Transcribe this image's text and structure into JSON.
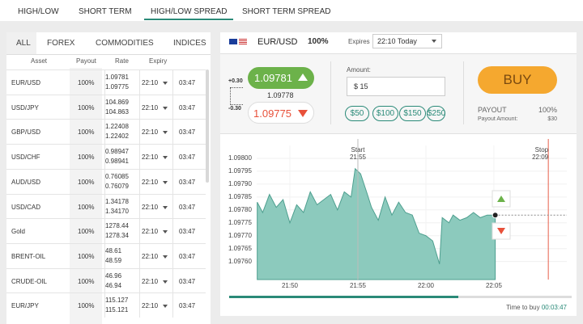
{
  "tabs": [
    "HIGH/LOW",
    "SHORT TERM",
    "HIGH/LOW SPREAD",
    "SHORT TERM SPREAD"
  ],
  "active_tab": 2,
  "filters": [
    "ALL",
    "FOREX",
    "COMMODITIES",
    "INDICES"
  ],
  "table": {
    "headers": [
      "Asset",
      "Payout",
      "Rate",
      "Expiry"
    ],
    "rows": [
      {
        "asset": "EUR/USD",
        "payout": "100%",
        "rate_high": "1.09781",
        "rate_low": "1.09775",
        "expiry": "22:10",
        "remaining": "03:47"
      },
      {
        "asset": "USD/JPY",
        "payout": "100%",
        "rate_high": "104.869",
        "rate_low": "104.863",
        "expiry": "22:10",
        "remaining": "03:47"
      },
      {
        "asset": "GBP/USD",
        "payout": "100%",
        "rate_high": "1.22408",
        "rate_low": "1.22402",
        "expiry": "22:10",
        "remaining": "03:47"
      },
      {
        "asset": "USD/CHF",
        "payout": "100%",
        "rate_high": "0.98947",
        "rate_low": "0.98941",
        "expiry": "22:10",
        "remaining": "03:47"
      },
      {
        "asset": "AUD/USD",
        "payout": "100%",
        "rate_high": "0.76085",
        "rate_low": "0.76079",
        "expiry": "22:10",
        "remaining": "03:47"
      },
      {
        "asset": "USD/CAD",
        "payout": "100%",
        "rate_high": "1.34178",
        "rate_low": "1.34170",
        "expiry": "22:10",
        "remaining": "03:47"
      },
      {
        "asset": "Gold",
        "payout": "100%",
        "rate_high": "1278.44",
        "rate_low": "1278.34",
        "expiry": "22:10",
        "remaining": "03:47"
      },
      {
        "asset": "BRENT-OIL",
        "payout": "100%",
        "rate_high": "48.61",
        "rate_low": "48.59",
        "expiry": "22:10",
        "remaining": "03:47"
      },
      {
        "asset": "CRUDE-OIL",
        "payout": "100%",
        "rate_high": "46.96",
        "rate_low": "46.94",
        "expiry": "22:10",
        "remaining": "03:47"
      },
      {
        "asset": "EUR/JPY",
        "payout": "100%",
        "rate_high": "115.127",
        "rate_low": "115.121",
        "expiry": "22:10",
        "remaining": "03:47"
      }
    ]
  },
  "panel": {
    "asset": "EUR/USD",
    "payout": "100%",
    "expires_label": "Expires",
    "expires": "22:10 Today",
    "spread_up": "+0.30",
    "spread_down": "-0.30",
    "high": "1.09781",
    "mid": "1.09778",
    "low": "1.09775",
    "amount_label": "Amount:",
    "amount": "$ 15",
    "quick_amounts": [
      "$50",
      "$100",
      "$150",
      "$250"
    ],
    "buy": "BUY",
    "payout_label": "PAYOUT",
    "payout_value": "100%",
    "payout_amount_label": "Payout Amount:",
    "payout_amount": "$30",
    "time_label": "Time to buy",
    "time_left": "00:03:47"
  },
  "chart_data": {
    "type": "area",
    "color": "#8ccabd",
    "line_color": "#4e9f8f",
    "grid": true,
    "x": [
      1307.6,
      1308.0,
      1308.5,
      1309.0,
      1309.5,
      1310.0,
      1310.5,
      1311.0,
      1311.5,
      1312.0,
      1312.5,
      1313.0,
      1313.5,
      1314.0,
      1314.5,
      1314.8,
      1315.2,
      1315.7,
      1316.0,
      1316.5,
      1317.0,
      1317.5,
      1318.0,
      1318.5,
      1319.0,
      1319.5,
      1320.0,
      1320.5,
      1321.0,
      1321.2,
      1321.7,
      1322.0,
      1322.5,
      1323.0,
      1323.5,
      1324.0,
      1324.5,
      1325.1
    ],
    "values": [
      1.09783,
      1.09779,
      1.09786,
      1.09781,
      1.09784,
      1.09775,
      1.09782,
      1.09779,
      1.09787,
      1.09782,
      1.09784,
      1.09786,
      1.0978,
      1.09787,
      1.09785,
      1.09796,
      1.09794,
      1.09786,
      1.09781,
      1.09776,
      1.09785,
      1.09778,
      1.09783,
      1.09779,
      1.09778,
      1.09771,
      1.0977,
      1.09768,
      1.09759,
      1.09777,
      1.09775,
      1.09778,
      1.09776,
      1.09777,
      1.09779,
      1.09777,
      1.09778,
      1.09778
    ],
    "xlim": [
      1307.56,
      1330.36
    ],
    "ylim": [
      1.09753,
      1.09805
    ],
    "xticks": [
      {
        "value": 1310,
        "label": "21:50"
      },
      {
        "value": 1315,
        "label": "21:55"
      },
      {
        "value": 1320,
        "label": "22:00"
      },
      {
        "value": 1325,
        "label": "22:05"
      }
    ],
    "yticks": [
      {
        "value": 1.098,
        "label": "1.09800"
      },
      {
        "value": 1.09795,
        "label": "1.09795"
      },
      {
        "value": 1.0979,
        "label": "1.09790"
      },
      {
        "value": 1.09785,
        "label": "1.09785"
      },
      {
        "value": 1.0978,
        "label": "1.09780"
      },
      {
        "value": 1.09775,
        "label": "1.09775"
      },
      {
        "value": 1.0977,
        "label": "1.09770"
      },
      {
        "value": 1.09765,
        "label": "1.09765"
      },
      {
        "value": 1.0976,
        "label": "1.09760"
      }
    ],
    "markers": [
      {
        "label": "Start",
        "time": "21:55",
        "x": 1315,
        "color": "#bdbdbd"
      },
      {
        "label": "Stop",
        "time": "22:09",
        "x": 1329,
        "color": "#e8604c"
      }
    ],
    "current": {
      "x": 1325.1,
      "value": 1.09778
    }
  }
}
